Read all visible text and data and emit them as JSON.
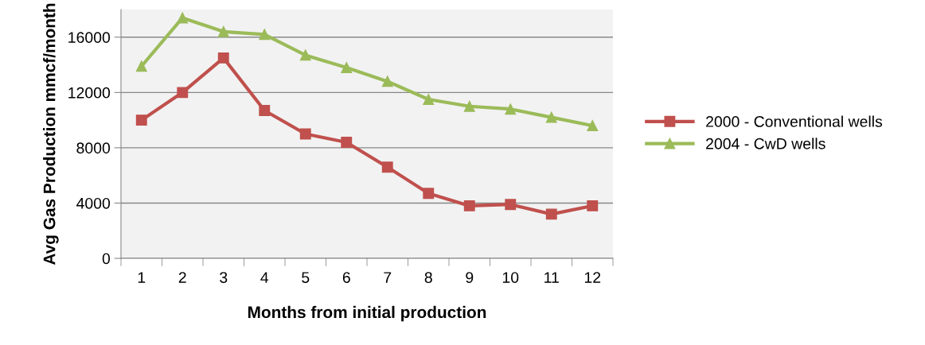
{
  "chart_data": {
    "type": "line",
    "xlabel": "Months from initial production",
    "ylabel": "Avg Gas Production mmcf/month",
    "categories": [
      "1",
      "2",
      "3",
      "4",
      "5",
      "6",
      "7",
      "8",
      "9",
      "10",
      "11",
      "12"
    ],
    "series": [
      {
        "name": "2000 - Conventional wells",
        "color": "#c0504d",
        "marker": "square",
        "values": [
          10000,
          12000,
          14500,
          10700,
          9000,
          8400,
          6600,
          4700,
          3800,
          3900,
          3200,
          3800
        ]
      },
      {
        "name": "2004 - CwD wells",
        "color": "#9bbb59",
        "marker": "triangle",
        "values": [
          13900,
          17400,
          16400,
          16200,
          14700,
          13800,
          12800,
          11500,
          11000,
          10800,
          10200,
          9600
        ]
      }
    ],
    "ylim": [
      0,
      18000
    ],
    "yticks": [
      0,
      4000,
      8000,
      12000,
      16000
    ],
    "grid": "y",
    "legend": "right"
  }
}
